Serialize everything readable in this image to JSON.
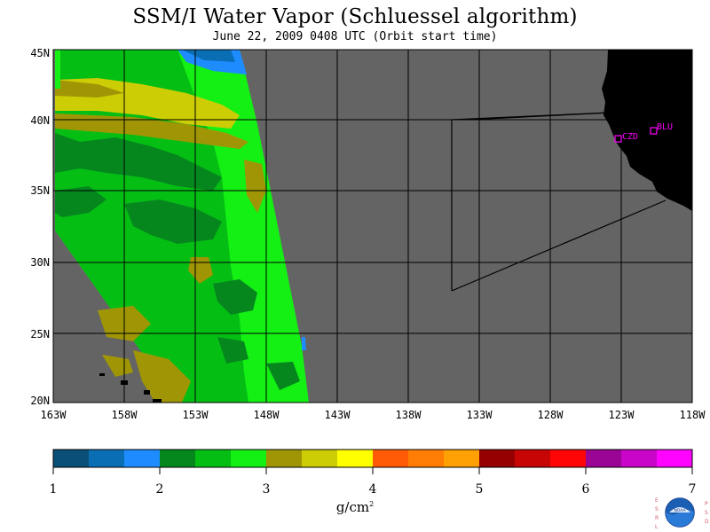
{
  "title": "SSM/I Water Vapor (Schluessel algorithm)",
  "subtitle": "June 22, 2009  0408 UTC  (Orbit start time)",
  "map": {
    "longitude_labels": [
      "163W",
      "158W",
      "153W",
      "148W",
      "143W",
      "138W",
      "133W",
      "128W",
      "123W",
      "118W"
    ],
    "latitude_labels": [
      "45N",
      "40N",
      "35N",
      "30N",
      "25N",
      "20N"
    ],
    "stations": [
      {
        "label": "CZD",
        "lat": 38.6,
        "lon": 123.2
      },
      {
        "label": "BLU",
        "lat": 39.3,
        "lon": 120.7
      }
    ],
    "colors": {
      "no_data": "#646464",
      "land": "#000000",
      "grid": "#000000",
      "station": "#ff00ff"
    }
  },
  "colorbar": {
    "colors": [
      "#0a4f78",
      "#0a6eb4",
      "#1e8cff",
      "#05871e",
      "#05be14",
      "#14f014",
      "#a09605",
      "#cdcd05",
      "#ffff00",
      "#ff5a05",
      "#ff7d05",
      "#ffa005",
      "#960000",
      "#c80505",
      "#ff0505",
      "#9b0596",
      "#c805c8",
      "#ff05ff"
    ],
    "tick_labels": [
      "1",
      "2",
      "3",
      "4",
      "5",
      "6",
      "7"
    ],
    "units": "g/cm",
    "units_superscript": "2"
  },
  "logo": {
    "left_letters": [
      "E",
      "S",
      "R",
      "L"
    ],
    "right_letters": [
      "P",
      "S",
      "D"
    ],
    "center_text": "NOAA"
  }
}
